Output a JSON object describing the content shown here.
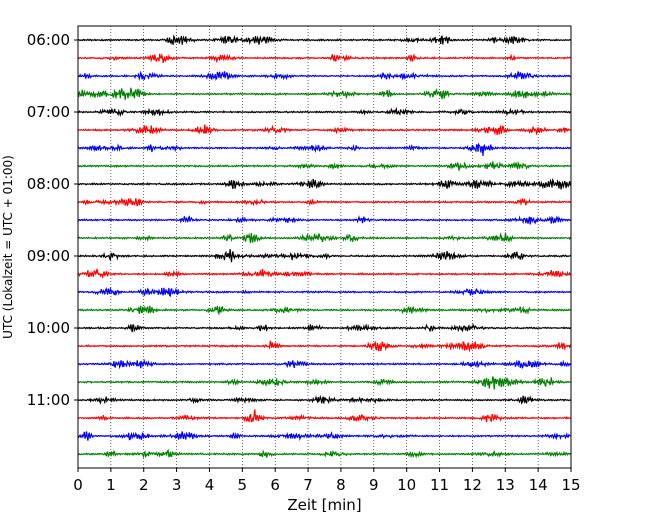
{
  "chart_data": {
    "type": "line",
    "title": "",
    "xlabel": "Zeit  [min]",
    "ylabel": "UTC (Lokalzeit = UTC + 01:00)",
    "xlim": [
      0,
      15
    ],
    "x_ticks": [
      "0",
      "1",
      "2",
      "3",
      "4",
      "5",
      "6",
      "7",
      "8",
      "9",
      "10",
      "11",
      "12",
      "13",
      "14",
      "15"
    ],
    "y_ticks": [
      {
        "label": "06:00",
        "row": 0
      },
      {
        "label": "07:00",
        "row": 4
      },
      {
        "label": "08:00",
        "row": 8
      },
      {
        "label": "09:00",
        "row": 12
      },
      {
        "label": "10:00",
        "row": 16
      },
      {
        "label": "11:00",
        "row": 20
      }
    ],
    "grid": "vertical dotted",
    "trace_minutes": 15,
    "trace_colors": [
      "#000000",
      "#ff0000",
      "#0000ff",
      "#008000"
    ],
    "traces": [
      {
        "start": "06:00"
      },
      {
        "start": "06:15"
      },
      {
        "start": "06:30"
      },
      {
        "start": "06:45"
      },
      {
        "start": "07:00"
      },
      {
        "start": "07:15"
      },
      {
        "start": "07:30"
      },
      {
        "start": "07:45"
      },
      {
        "start": "08:00"
      },
      {
        "start": "08:15"
      },
      {
        "start": "08:30"
      },
      {
        "start": "08:45"
      },
      {
        "start": "09:00"
      },
      {
        "start": "09:15"
      },
      {
        "start": "09:30"
      },
      {
        "start": "09:45"
      },
      {
        "start": "10:00"
      },
      {
        "start": "10:15"
      },
      {
        "start": "10:30"
      },
      {
        "start": "10:45"
      },
      {
        "start": "11:00"
      },
      {
        "start": "11:15"
      },
      {
        "start": "11:30"
      },
      {
        "start": "11:45"
      }
    ]
  }
}
